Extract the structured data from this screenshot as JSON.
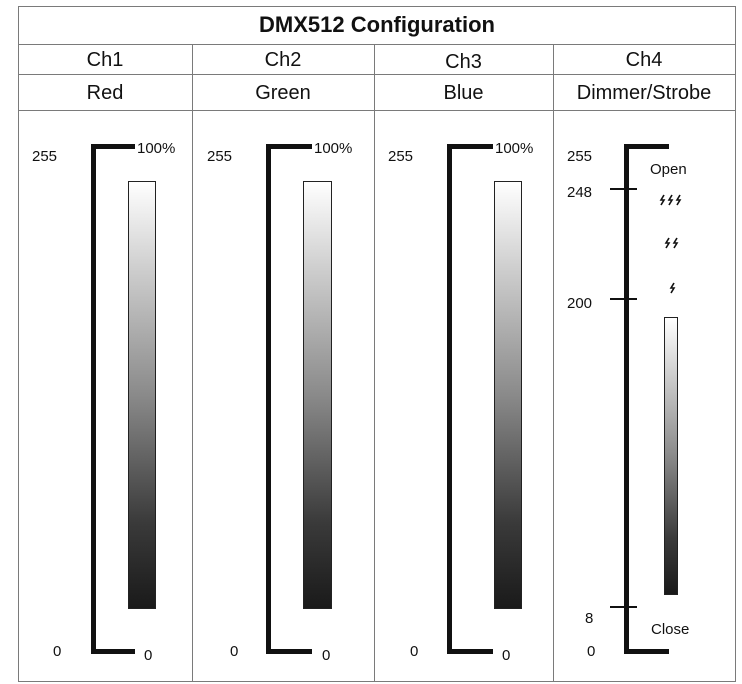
{
  "title": "DMX512 Configuration",
  "channels": [
    {
      "channel": "Ch1",
      "function": "Red",
      "scale_top": "255",
      "scale_bottom": "0",
      "pct_top": "100%",
      "pct_bottom": "0"
    },
    {
      "channel": "Ch2",
      "function": "Green",
      "scale_top": "255",
      "scale_bottom": "0",
      "pct_top": "100%",
      "pct_bottom": "0"
    },
    {
      "channel": "Ch3",
      "function": "Blue",
      "scale_top": "255",
      "scale_bottom": "0",
      "pct_top": "100%",
      "pct_bottom": "0"
    },
    {
      "channel": "Ch4",
      "function": "Dimmer/Strobe",
      "ticks": [
        "255",
        "248",
        "200",
        "8",
        "0"
      ],
      "label_open": "Open",
      "label_close": "Close"
    }
  ],
  "colors": {
    "line": "#111111",
    "grid": "#7a7a7a"
  },
  "icons": {
    "strobe_fast": "strobe-fast-icon",
    "strobe_medium": "strobe-medium-icon",
    "strobe_slow": "strobe-slow-icon"
  }
}
